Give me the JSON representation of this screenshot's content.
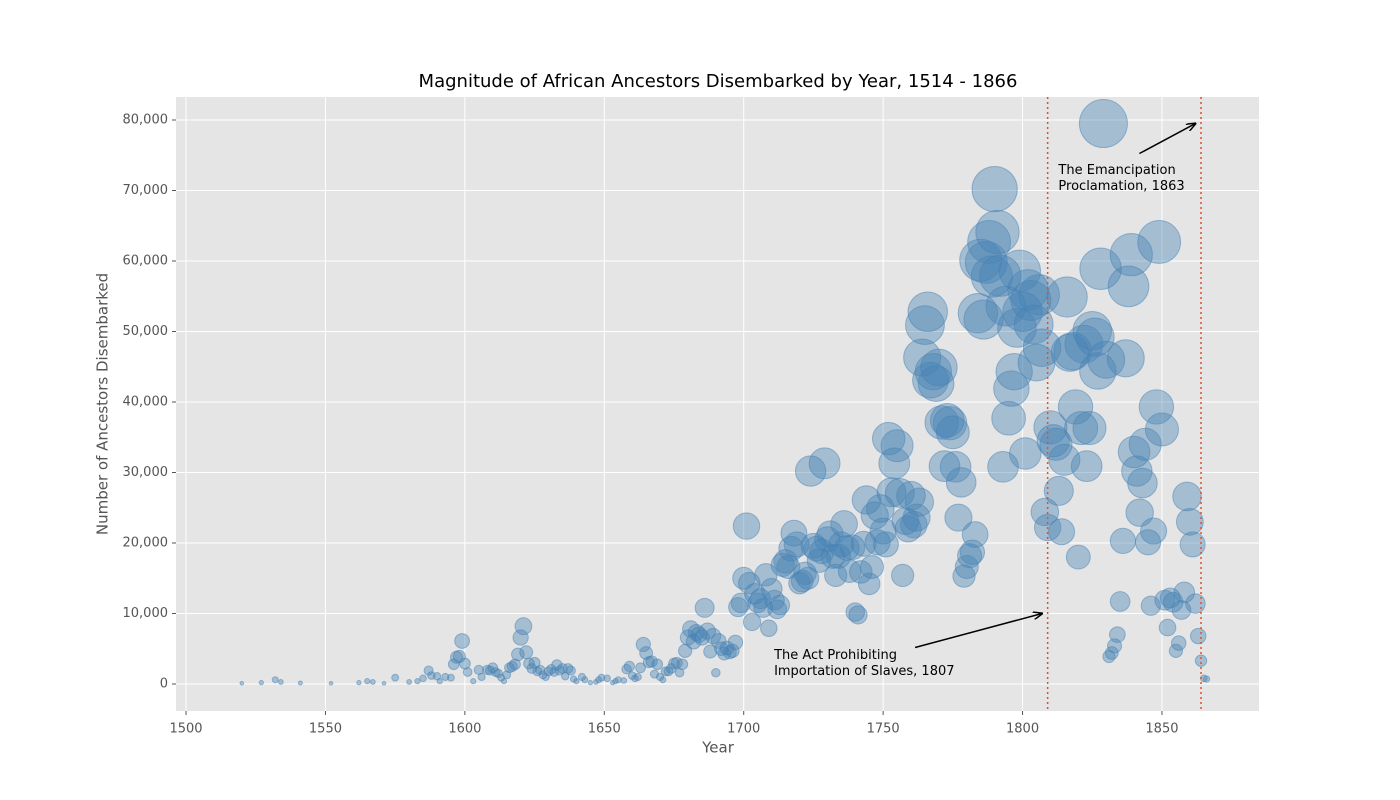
{
  "chart_data": {
    "type": "scatter",
    "title": "Magnitude of African Ancestors Disembarked by Year, 1514 - 1866",
    "xlabel": "Year",
    "ylabel": "Number of Ancestors Disembarked",
    "x": [
      1520,
      1527,
      1532,
      1534,
      1541,
      1552,
      1562,
      1565,
      1567,
      1571,
      1575,
      1580,
      1583,
      1585,
      1587,
      1588,
      1590,
      1591,
      1593,
      1595,
      1596,
      1597,
      1598,
      1599,
      1600,
      1601,
      1603,
      1605,
      1606,
      1608,
      1609,
      1610,
      1611,
      1612,
      1613,
      1614,
      1615,
      1616,
      1617,
      1618,
      1619,
      1620,
      1621,
      1622,
      1623,
      1624,
      1625,
      1626,
      1627,
      1628,
      1629,
      1630,
      1631,
      1632,
      1633,
      1634,
      1635,
      1636,
      1637,
      1638,
      1639,
      1640,
      1642,
      1643,
      1645,
      1647,
      1648,
      1649,
      1651,
      1653,
      1654,
      1655,
      1657,
      1658,
      1659,
      1660,
      1661,
      1662,
      1663,
      1664,
      1665,
      1666,
      1667,
      1668,
      1669,
      1670,
      1671,
      1672,
      1673,
      1674,
      1675,
      1676,
      1677,
      1678,
      1679,
      1680,
      1681,
      1682,
      1683,
      1684,
      1685,
      1686,
      1687,
      1688,
      1689,
      1690,
      1691,
      1692,
      1693,
      1694,
      1695,
      1696,
      1697,
      1698,
      1699,
      1700,
      1701,
      1702,
      1703,
      1704,
      1705,
      1706,
      1707,
      1708,
      1709,
      1710,
      1711,
      1712,
      1713,
      1714,
      1715,
      1716,
      1717,
      1718,
      1719,
      1720,
      1721,
      1722,
      1723,
      1724,
      1725,
      1726,
      1727,
      1728,
      1729,
      1730,
      1731,
      1732,
      1733,
      1734,
      1735,
      1736,
      1737,
      1738,
      1739,
      1740,
      1741,
      1742,
      1743,
      1744,
      1745,
      1746,
      1747,
      1748,
      1749,
      1750,
      1751,
      1752,
      1753,
      1754,
      1755,
      1756,
      1757,
      1758,
      1759,
      1760,
      1761,
      1762,
      1763,
      1764,
      1765,
      1766,
      1767,
      1768,
      1769,
      1770,
      1771,
      1772,
      1773,
      1774,
      1775,
      1776,
      1777,
      1778,
      1779,
      1780,
      1781,
      1782,
      1783,
      1784,
      1785,
      1786,
      1787,
      1788,
      1789,
      1790,
      1791,
      1792,
      1793,
      1794,
      1795,
      1796,
      1797,
      1798,
      1799,
      1800,
      1801,
      1802,
      1803,
      1804,
      1805,
      1806,
      1807,
      1808,
      1809,
      1810,
      1811,
      1812,
      1813,
      1814,
      1815,
      1816,
      1817,
      1818,
      1819,
      1820,
      1821,
      1822,
      1823,
      1824,
      1825,
      1826,
      1827,
      1828,
      1829,
      1830,
      1831,
      1832,
      1833,
      1834,
      1835,
      1836,
      1837,
      1838,
      1839,
      1840,
      1841,
      1842,
      1843,
      1844,
      1845,
      1846,
      1847,
      1848,
      1849,
      1850,
      1851,
      1852,
      1853,
      1854,
      1855,
      1856,
      1857,
      1858,
      1859,
      1860,
      1861,
      1862,
      1863,
      1864,
      1865,
      1866
    ],
    "values": [
      100,
      200,
      600,
      300,
      150,
      100,
      200,
      400,
      300,
      100,
      900,
      300,
      400,
      800,
      1900,
      1200,
      1100,
      400,
      1000,
      900,
      2800,
      3800,
      3900,
      6100,
      2900,
      1700,
      400,
      2000,
      1000,
      2000,
      1900,
      2300,
      1700,
      1500,
      900,
      400,
      1300,
      2300,
      2500,
      2800,
      4200,
      6600,
      8200,
      4500,
      2900,
      2200,
      3000,
      1800,
      2000,
      1300,
      1000,
      1800,
      2100,
      1700,
      2700,
      1900,
      2200,
      1100,
      2200,
      1900,
      700,
      400,
      1000,
      600,
      200,
      300,
      600,
      900,
      800,
      200,
      400,
      600,
      500,
      2100,
      2500,
      1200,
      800,
      1000,
      2300,
      5600,
      4400,
      3100,
      3200,
      1400,
      2800,
      1000,
      600,
      1800,
      1800,
      2200,
      2900,
      3000,
      1600,
      2800,
      4700,
      6600,
      7800,
      6000,
      7300,
      7000,
      6600,
      10800,
      7500,
      4600,
      6800,
      1600,
      6100,
      5000,
      4300,
      5100,
      4500,
      4700,
      5900,
      10900,
      11500,
      15000,
      22400,
      14300,
      8800,
      12800,
      11500,
      12100,
      10800,
      15500,
      7900,
      13500,
      11900,
      10600,
      11200,
      16900,
      17400,
      16600,
      19200,
      21400,
      19800,
      14300,
      14600,
      15700,
      15000,
      30200,
      19600,
      19200,
      17500,
      18800,
      31300,
      20500,
      21300,
      18100,
      15400,
      18100,
      19800,
      22700,
      19300,
      16000,
      19400,
      10200,
      9800,
      15900,
      19900,
      26100,
      14200,
      16600,
      23900,
      20100,
      24900,
      21700,
      19800,
      34800,
      27200,
      31300,
      33800,
      27100,
      15400,
      23100,
      22000,
      26700,
      22600,
      23600,
      25800,
      46300,
      50900,
      52800,
      43100,
      44300,
      42600,
      44900,
      37100,
      30900,
      37400,
      37000,
      35700,
      30800,
      23600,
      28600,
      15300,
      16600,
      18200,
      18700,
      21200,
      52600,
      60100,
      51700,
      59800,
      62700,
      57800,
      70200,
      64100,
      57900,
      30800,
      53600,
      37700,
      41900,
      44300,
      50500,
      58600,
      52800,
      32700,
      55900,
      54400,
      51000,
      45600,
      55200,
      47700,
      24400,
      22200,
      36400,
      34500,
      34000,
      27400,
      21600,
      31800,
      54900,
      47000,
      47200,
      39300,
      18000,
      36300,
      48200,
      30900,
      36300,
      50100,
      49200,
      44400,
      58900,
      79500,
      46000,
      3900,
      4400,
      5400,
      7000,
      11700,
      20300,
      46200,
      56400,
      60900,
      32900,
      30200,
      24300,
      28500,
      34000,
      20100,
      11100,
      21700,
      39300,
      62700,
      36100,
      11900,
      8000,
      12200,
      11600,
      4700,
      5800,
      10500,
      13000,
      26600,
      23000,
      19800,
      11400,
      6800,
      3300,
      800,
      700
    ],
    "color": "#4682b4",
    "xlim": [
      1496.4,
      1884.8
    ],
    "xticks": [
      1500,
      1550,
      1600,
      1650,
      1700,
      1750,
      1800,
      1850
    ],
    "ylim": [
      -3830,
      83262
    ],
    "yticks": [
      0,
      {
        "value": 10000,
        "label": "10,000"
      },
      {
        "value": 20000,
        "label": "20,000"
      },
      {
        "value": 30000,
        "label": "30,000"
      },
      {
        "value": 40000,
        "label": "40,000"
      },
      {
        "value": 50000,
        "label": "50,000"
      },
      {
        "value": 60000,
        "label": "60,000"
      },
      {
        "value": 70000,
        "label": "70,000"
      },
      {
        "value": 80000,
        "label": "80,000"
      }
    ],
    "grid": true,
    "vlines": [
      {
        "x": 1809,
        "color": "#e0502a"
      },
      {
        "x": 1864,
        "color": "#e0502a"
      }
    ],
    "annotations": [
      {
        "text": [
          "The Act Prohibiting",
          "Importation of Slaves, 1807"
        ],
        "xy": [
          1807,
          10000
        ]
      },
      {
        "text": [
          "The Emancipation",
          "Proclamation, 1863"
        ],
        "xy": [
          1862,
          79500
        ]
      }
    ]
  }
}
